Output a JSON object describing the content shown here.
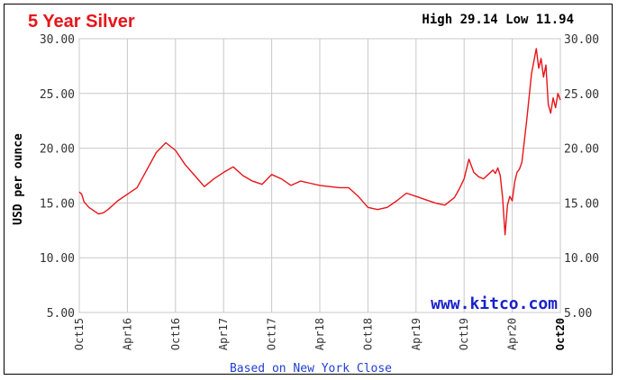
{
  "chart_data": {
    "type": "line",
    "title": "5 Year Silver",
    "high_low": "High 29.14 Low 11.94",
    "ylabel": "USD per ounce",
    "footer": "Based on New York Close",
    "watermark": "www.kitco.com",
    "ylim": [
      5,
      30
    ],
    "yticks": [
      "5.00",
      "10.00",
      "15.00",
      "20.00",
      "25.00",
      "30.00"
    ],
    "xticks": [
      "Oct15",
      "Apr16",
      "Oct16",
      "Apr17",
      "Oct17",
      "Apr18",
      "Oct18",
      "Apr19",
      "Oct19",
      "Apr20",
      "Oct20"
    ],
    "grid": true,
    "line_color": "#e8141a",
    "series": [
      {
        "x": [
          0,
          0.05,
          0.1,
          0.2,
          0.3,
          0.4,
          0.5,
          0.6,
          0.8,
          1.0,
          1.2,
          1.4,
          1.6,
          1.8,
          2.0,
          2.2,
          2.4,
          2.6,
          2.8,
          3.0,
          3.2,
          3.4,
          3.6,
          3.8,
          4.0,
          4.2,
          4.4,
          4.6,
          4.8,
          5.0,
          5.2,
          5.4,
          5.6,
          5.8,
          6.0,
          6.2,
          6.4,
          6.6,
          6.8,
          7.0,
          7.2,
          7.4,
          7.6,
          7.8,
          7.9,
          8.0,
          8.1,
          8.2,
          8.3,
          8.4,
          8.5,
          8.6,
          8.65,
          8.7,
          8.75,
          8.8,
          8.85,
          8.9,
          8.95,
          9.0,
          9.05,
          9.1,
          9.15,
          9.2,
          9.3,
          9.4,
          9.5,
          9.55,
          9.6,
          9.65,
          9.7,
          9.75,
          9.8,
          9.85,
          9.9,
          9.95,
          10.0
        ],
        "values": [
          16.0,
          15.8,
          15.1,
          14.6,
          14.3,
          14.0,
          14.1,
          14.4,
          15.2,
          15.8,
          16.4,
          18.0,
          19.6,
          20.5,
          19.8,
          18.5,
          17.5,
          16.5,
          17.2,
          17.8,
          18.3,
          17.5,
          17.0,
          16.7,
          17.6,
          17.2,
          16.6,
          17.0,
          16.8,
          16.6,
          16.5,
          16.4,
          16.4,
          15.6,
          14.6,
          14.4,
          14.6,
          15.2,
          15.9,
          15.6,
          15.3,
          15.0,
          14.8,
          15.5,
          16.3,
          17.2,
          19.0,
          17.8,
          17.4,
          17.2,
          17.6,
          18.0,
          17.7,
          18.2,
          17.5,
          15.5,
          12.1,
          14.8,
          15.6,
          15.2,
          16.9,
          17.8,
          18.1,
          18.7,
          22.5,
          26.8,
          29.1,
          27.3,
          28.2,
          26.5,
          27.6,
          24.0,
          23.2,
          24.6,
          23.7,
          25.0,
          24.4
        ]
      }
    ]
  }
}
